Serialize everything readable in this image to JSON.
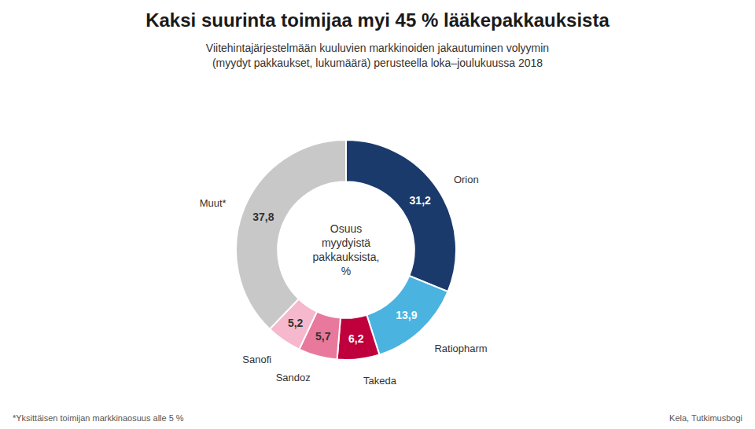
{
  "chart_data": {
    "type": "donut",
    "title": "Kaksi suurinta toimijaa myi 45 % lääkepakkauksista",
    "subtitle": "Viitehintajärjestelmään kuuluvien markkinoiden jakautuminen volyymin\n(myydyt pakkaukset, lukumäärä) perusteella loka–joulukuussa 2018",
    "center_text": "Osuus\nmyydyistä\npakkauksista,\n%",
    "footnote": "*Yksittäisen toimijan markkinaosuus alle 5 %",
    "source": "Kela, Tutkimusbogi",
    "categories": [
      "Orion",
      "Ratiopharm",
      "Takeda",
      "Sandoz",
      "Sanofi",
      "Muut*"
    ],
    "values": [
      31.2,
      13.9,
      6.2,
      5.7,
      5.2,
      37.8
    ],
    "value_labels": [
      "31,2",
      "13,9",
      "6,2",
      "5,7",
      "5,2",
      "37,8"
    ],
    "colors": [
      "#1a3a6b",
      "#4ab3e0",
      "#c0003c",
      "#e8799d",
      "#f5b8cc",
      "#c8c8c8"
    ],
    "data_labels": true
  }
}
